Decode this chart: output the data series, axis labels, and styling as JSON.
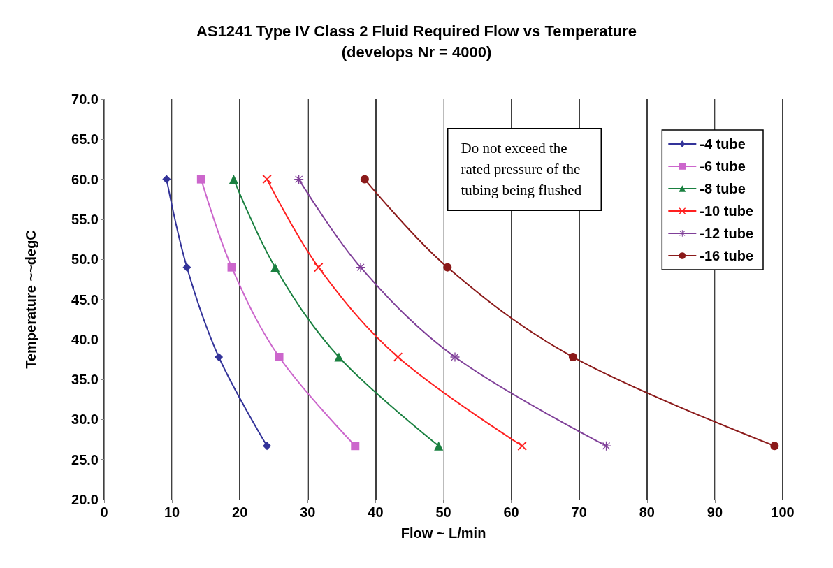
{
  "chart_data": {
    "type": "line",
    "title": "AS1241 Type IV Class 2 Fluid Required Flow vs Temperature",
    "subtitle": "(develops Nr = 4000)",
    "xlabel": "Flow ~ L/min",
    "ylabel": "Temperature ~~degC",
    "xlim": [
      0,
      100
    ],
    "xticks": [
      0,
      10,
      20,
      30,
      40,
      50,
      60,
      70,
      80,
      90,
      100
    ],
    "ylim": [
      20,
      70
    ],
    "yticks": [
      {
        "value": 20,
        "label": "20.0"
      },
      {
        "value": 25,
        "label": "25.0"
      },
      {
        "value": 30,
        "label": "30.0"
      },
      {
        "value": 35,
        "label": "35.0"
      },
      {
        "value": 40,
        "label": "40.0"
      },
      {
        "value": 45,
        "label": "45.0"
      },
      {
        "value": 50,
        "label": "50.0"
      },
      {
        "value": 55,
        "label": "55.0"
      },
      {
        "value": 60,
        "label": "60.0"
      },
      {
        "value": 65,
        "label": "65.0"
      },
      {
        "value": 70,
        "label": "70.0"
      }
    ],
    "grid": "x",
    "legend": "top right",
    "line_style": "solid",
    "annotations": [
      "Do not exceed the rated pressure of the tubing being flushed"
    ],
    "series": [
      {
        "name": "-4 tube",
        "color": "#333399",
        "marker": "diamond",
        "x": [
          9.2,
          12.2,
          16.9,
          24.0
        ],
        "values": [
          60.0,
          49.0,
          37.8,
          26.7
        ]
      },
      {
        "name": "-6 tube",
        "color": "#cc66cc",
        "marker": "square",
        "x": [
          14.3,
          18.8,
          25.8,
          37.0
        ],
        "values": [
          60.0,
          49.0,
          37.8,
          26.7
        ]
      },
      {
        "name": "-8 tube",
        "color": "#1a8040",
        "marker": "triangle",
        "x": [
          19.1,
          25.2,
          34.6,
          49.3
        ],
        "values": [
          60.0,
          49.0,
          37.8,
          26.7
        ]
      },
      {
        "name": "-10 tube",
        "color": "#ff2020",
        "marker": "cross",
        "x": [
          24.0,
          31.6,
          43.3,
          61.6
        ],
        "values": [
          60.0,
          49.0,
          37.8,
          26.7
        ]
      },
      {
        "name": "-12 tube",
        "color": "#7f3f98",
        "marker": "star",
        "x": [
          28.7,
          37.8,
          51.7,
          74.0
        ],
        "values": [
          60.0,
          49.0,
          37.8,
          26.7
        ]
      },
      {
        "name": "-16 tube",
        "color": "#8b1a1a",
        "marker": "circle",
        "x": [
          38.4,
          50.6,
          69.1,
          98.8
        ],
        "values": [
          60.0,
          49.0,
          37.8,
          26.7
        ]
      }
    ]
  }
}
